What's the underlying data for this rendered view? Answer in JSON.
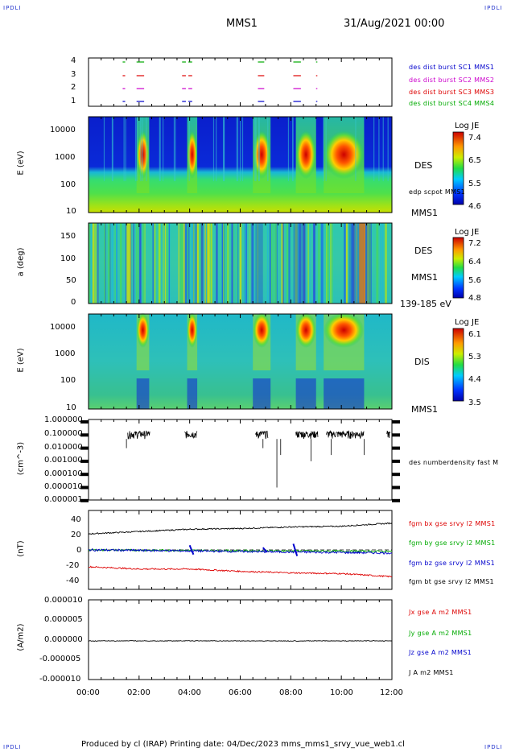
{
  "header": {
    "corner_tl": "IPDLI",
    "corner_tr": "IPDLI",
    "corner_bl": "IPDLI",
    "corner_br": "IPDLI",
    "mission": "MMS1",
    "datetime": "31/Aug/2021 00:00"
  },
  "footer": {
    "text": "Produced by cl (IRAP)   Printing date: 04/Dec/2023   mms_mms1_srvy_vue_web1.cl"
  },
  "panels": {
    "burst": {
      "ticks": [
        "4",
        "3",
        "2",
        "1"
      ],
      "labels": [
        {
          "text": "des dist burst SC1 MMS1",
          "color": "#0000cc"
        },
        {
          "text": "des dist burst SC2 MMS2",
          "color": "#cc00cc"
        },
        {
          "text": "des dist burst SC3 MMS3",
          "color": "#dd0000"
        },
        {
          "text": "des dist burst SC4 MMS4",
          "color": "#00aa00"
        }
      ]
    },
    "des_energy": {
      "ylabel": "E (eV)",
      "ticks": [
        "10000",
        "1000",
        "100",
        "10"
      ],
      "instrument": "DES",
      "overlay": "edp scpot MMS1",
      "sc": "MMS1",
      "cb_title": "Log JE",
      "cb_ticks": [
        "7.4",
        "6.5",
        "5.5",
        "4.6"
      ]
    },
    "des_pitch": {
      "ylabel": "a (deg)",
      "ticks": [
        "150",
        "100",
        "50",
        "0"
      ],
      "instrument": "DES",
      "sc": "MMS1",
      "range": "139-185 eV",
      "cb_title": "Log JE",
      "cb_ticks": [
        "7.2",
        "6.4",
        "5.6",
        "4.8"
      ]
    },
    "dis_energy": {
      "ylabel": "E (eV)",
      "ticks": [
        "10000",
        "1000",
        "100",
        "10"
      ],
      "instrument": "DIS",
      "sc": "MMS1",
      "cb_title": "Log JE",
      "cb_ticks": [
        "6.1",
        "5.3",
        "4.4",
        "3.5"
      ]
    },
    "density": {
      "ylabel": "(cm^-3)",
      "ticks": [
        "1.000000",
        "0.100000",
        "0.010000",
        "0.001000",
        "0.000100",
        "0.000010",
        "0.000001"
      ],
      "label": "des numberdensity fast M"
    },
    "field": {
      "ylabel": "(nT)",
      "ticks": [
        "40",
        "20",
        "0",
        "-20",
        "-40"
      ],
      "labels": [
        {
          "text": "fgm bx gse srvy l2 MMS1",
          "color": "#dd0000"
        },
        {
          "text": "fgm by gse srvy l2 MMS1",
          "color": "#00aa00"
        },
        {
          "text": "fgm bz gse srvy l2 MMS1",
          "color": "#0000cc"
        },
        {
          "text": "fgm bt gse srvy l2 MMS1",
          "color": "#000000"
        }
      ]
    },
    "current": {
      "ylabel": "(A/m2)",
      "ticks": [
        "0.000010",
        "0.000005",
        "0.000000",
        "-0.000005",
        "-0.000010"
      ],
      "labels": [
        {
          "text": "Jx gse A m2 MMS1",
          "color": "#dd0000"
        },
        {
          "text": "Jy gse A m2 MMS1",
          "color": "#00aa00"
        },
        {
          "text": "Jz gse A m2 MMS1",
          "color": "#0000cc"
        },
        {
          "text": "J A m2 MMS1",
          "color": "#000000"
        }
      ]
    },
    "time_ticks": [
      "00:00",
      "02:00",
      "04:00",
      "06:00",
      "08:00",
      "10:00",
      "12:00"
    ]
  },
  "chart_data": {
    "type": "line",
    "x_range_hours": [
      0,
      12
    ],
    "burst_intervals_hours": [
      [
        1.35,
        1.45
      ],
      [
        1.9,
        2.2
      ],
      [
        3.7,
        3.85
      ],
      [
        3.95,
        4.1
      ],
      [
        6.7,
        6.95
      ],
      [
        8.1,
        8.4
      ],
      [
        9.0,
        9.05
      ]
    ],
    "energetic_intervals_hours": [
      [
        1.9,
        2.4
      ],
      [
        3.9,
        4.3
      ],
      [
        6.5,
        7.2
      ],
      [
        8.2,
        9.0
      ],
      [
        9.3,
        10.9
      ]
    ],
    "bt_nT": [
      [
        0,
        21
      ],
      [
        2,
        24
      ],
      [
        4,
        27
      ],
      [
        6,
        28
      ],
      [
        8,
        30
      ],
      [
        10,
        31
      ],
      [
        12,
        35
      ]
    ],
    "bx_nT": [
      [
        0,
        -22
      ],
      [
        2,
        -25
      ],
      [
        4,
        -25
      ],
      [
        6,
        -28
      ],
      [
        8,
        -30
      ],
      [
        10,
        -31
      ],
      [
        12,
        -35
      ]
    ],
    "density_sample_cm3": [
      [
        1.5,
        0.01
      ],
      [
        2.0,
        0.1
      ],
      [
        4.0,
        0.1
      ],
      [
        6.8,
        0.1
      ],
      [
        8.5,
        0.1
      ],
      [
        10.5,
        0.1
      ]
    ],
    "current_A_m2": 0
  }
}
